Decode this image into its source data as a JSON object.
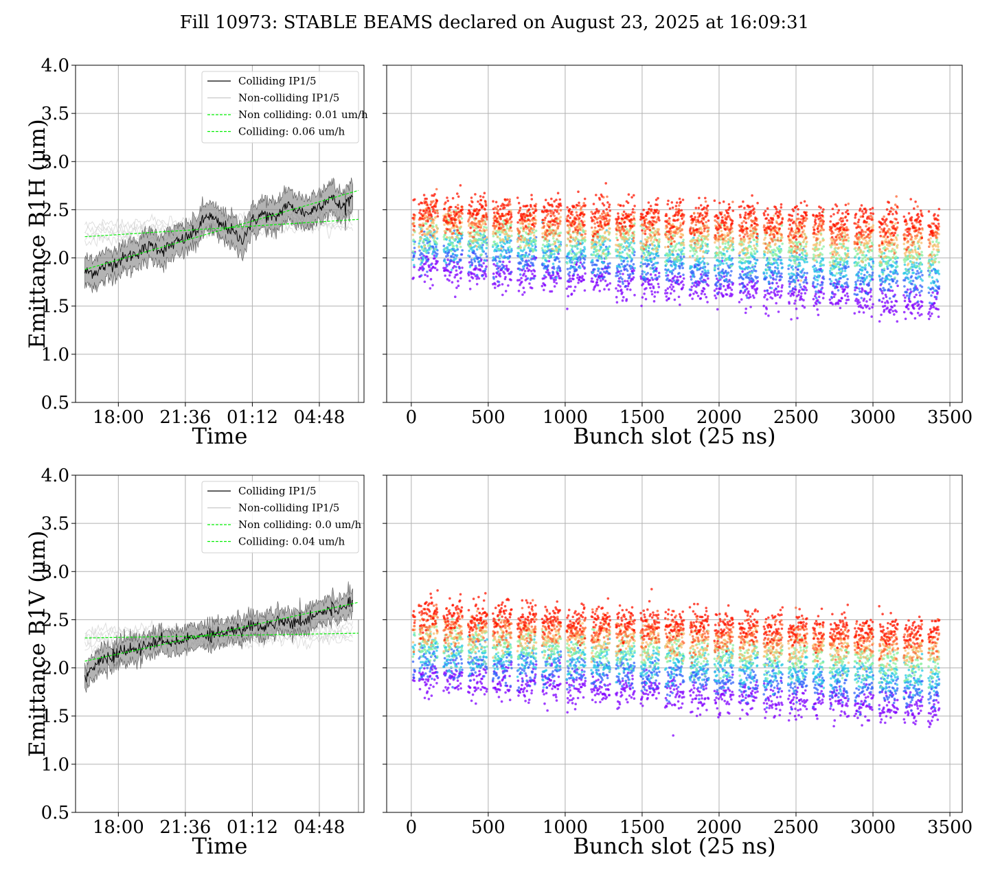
{
  "title": "Fill 10973: STABLE BEAMS declared on August 23, 2025 at 16:09:31",
  "colors": {
    "colliding": "#000000",
    "band": "#808080",
    "noncolliding": "#c8c8c8",
    "fit": "#00ee00",
    "grid": "#b0b0b0"
  },
  "chart_data": [
    {
      "type": "line",
      "panel": "top-left",
      "xlabel": "Time",
      "ylabel": "Emittance B1H (μm)",
      "x_tick_labels": [
        "18:00",
        "21:36",
        "01:12",
        "04:48"
      ],
      "x_ticks_hours": [
        18.0,
        21.6,
        25.2,
        28.8
      ],
      "xlim_hours": [
        15.7,
        31.2
      ],
      "ylim": [
        0.5,
        4.0
      ],
      "y_ticks": [
        0.5,
        1.0,
        1.5,
        2.0,
        2.5,
        3.0,
        3.5,
        4.0
      ],
      "grid": true,
      "legend_position": "upper right",
      "series": [
        {
          "name": "Colliding IP1/5",
          "style": "line",
          "x_hours": [
            16.2,
            16.8,
            17.4,
            18.0,
            18.6,
            19.2,
            19.8,
            20.4,
            21.0,
            21.6,
            22.2,
            22.8,
            23.4,
            24.0,
            24.6,
            25.2,
            25.8,
            26.4,
            27.0,
            27.6,
            28.2,
            28.8,
            29.4,
            30.0,
            30.6
          ],
          "values": [
            1.85,
            1.86,
            1.92,
            1.97,
            2.02,
            2.07,
            2.13,
            2.08,
            2.15,
            2.2,
            2.28,
            2.45,
            2.35,
            2.3,
            2.18,
            2.38,
            2.46,
            2.4,
            2.55,
            2.5,
            2.46,
            2.55,
            2.63,
            2.52,
            2.65
          ],
          "band_half_width": 0.15
        },
        {
          "name": "Non-colliding IP1/5",
          "style": "line",
          "x_hours": [
            16.2,
            17.4,
            18.6,
            19.8,
            21.0,
            22.2,
            23.4,
            24.6,
            25.8,
            27.0,
            28.2,
            29.4,
            30.6
          ],
          "values": [
            2.25,
            2.28,
            2.27,
            2.3,
            2.29,
            2.31,
            2.35,
            2.34,
            2.36,
            2.37,
            2.4,
            2.38,
            2.4
          ]
        },
        {
          "name": "Non colliding: 0.01 um/h",
          "style": "dashed",
          "x_hours": [
            16.2,
            30.9
          ],
          "values": [
            2.22,
            2.4
          ]
        },
        {
          "name": "Colliding: 0.06 um/h",
          "style": "dashed",
          "x_hours": [
            16.2,
            30.9
          ],
          "values": [
            1.88,
            2.7
          ]
        }
      ]
    },
    {
      "type": "scatter",
      "panel": "top-right",
      "xlabel": "Bunch slot (25 ns)",
      "x_ticks": [
        0,
        500,
        1000,
        1500,
        2000,
        2500,
        3000,
        3500
      ],
      "xlim": [
        -160,
        3580
      ],
      "ylim": [
        0.5,
        4.0
      ],
      "grid": true,
      "colormap": "rainbow (purple to red over time)",
      "trains": [
        {
          "start": 10,
          "end": 24
        },
        {
          "start": 50,
          "end": 170
        },
        {
          "start": 210,
          "end": 330
        },
        {
          "start": 370,
          "end": 490
        },
        {
          "start": 530,
          "end": 650
        },
        {
          "start": 690,
          "end": 810
        },
        {
          "start": 850,
          "end": 970
        },
        {
          "start": 1010,
          "end": 1130
        },
        {
          "start": 1170,
          "end": 1290
        },
        {
          "start": 1330,
          "end": 1450
        },
        {
          "start": 1490,
          "end": 1610
        },
        {
          "start": 1650,
          "end": 1770
        },
        {
          "start": 1810,
          "end": 1930
        },
        {
          "start": 1970,
          "end": 2090
        },
        {
          "start": 2130,
          "end": 2250
        },
        {
          "start": 2290,
          "end": 2410
        },
        {
          "start": 2450,
          "end": 2570
        },
        {
          "start": 2610,
          "end": 2680
        },
        {
          "start": 2720,
          "end": 2840
        },
        {
          "start": 2880,
          "end": 3000
        },
        {
          "start": 3040,
          "end": 3160
        },
        {
          "start": 3200,
          "end": 3320
        },
        {
          "start": 3360,
          "end": 3430
        }
      ],
      "level_start": [
        2.05,
        2.0,
        1.95,
        1.75
      ],
      "level_end": [
        2.4,
        2.3,
        2.2,
        1.55
      ],
      "top_start": 2.55,
      "top_end": 2.4
    },
    {
      "type": "line",
      "panel": "bottom-left",
      "xlabel": "Time",
      "ylabel": "Emittance B1V (μm)",
      "x_tick_labels": [
        "18:00",
        "21:36",
        "01:12",
        "04:48"
      ],
      "x_ticks_hours": [
        18.0,
        21.6,
        25.2,
        28.8
      ],
      "xlim_hours": [
        15.7,
        31.2
      ],
      "ylim": [
        0.5,
        4.0
      ],
      "y_ticks": [
        0.5,
        1.0,
        1.5,
        2.0,
        2.5,
        3.0,
        3.5,
        4.0
      ],
      "grid": true,
      "legend_position": "upper right",
      "series": [
        {
          "name": "Colliding IP1/5",
          "style": "line",
          "x_hours": [
            16.2,
            16.8,
            17.4,
            18.0,
            18.6,
            19.2,
            19.8,
            20.4,
            21.0,
            21.6,
            22.2,
            22.8,
            23.4,
            24.0,
            24.6,
            25.2,
            25.8,
            26.4,
            27.0,
            27.6,
            28.2,
            28.8,
            29.4,
            30.0,
            30.6
          ],
          "values": [
            1.88,
            2.05,
            2.1,
            2.15,
            2.18,
            2.2,
            2.25,
            2.28,
            2.25,
            2.3,
            2.32,
            2.36,
            2.35,
            2.4,
            2.38,
            2.45,
            2.42,
            2.48,
            2.5,
            2.46,
            2.52,
            2.58,
            2.6,
            2.62,
            2.7
          ],
          "band_half_width": 0.12
        },
        {
          "name": "Non-colliding IP1/5",
          "style": "line",
          "x_hours": [
            16.2,
            17.4,
            18.6,
            19.8,
            21.0,
            22.2,
            23.4,
            24.6,
            25.8,
            27.0,
            28.2,
            29.4,
            30.6
          ],
          "values": [
            2.3,
            2.31,
            2.32,
            2.33,
            2.32,
            2.34,
            2.35,
            2.34,
            2.35,
            2.36,
            2.35,
            2.36,
            2.36
          ]
        },
        {
          "name": "Non colliding: 0.0 um/h",
          "style": "dashed",
          "x_hours": [
            16.2,
            30.9
          ],
          "values": [
            2.31,
            2.36
          ]
        },
        {
          "name": "Colliding: 0.04 um/h",
          "style": "dashed",
          "x_hours": [
            16.2,
            30.9
          ],
          "values": [
            2.07,
            2.68
          ]
        }
      ]
    },
    {
      "type": "scatter",
      "panel": "bottom-right",
      "xlabel": "Bunch slot (25 ns)",
      "x_ticks": [
        0,
        500,
        1000,
        1500,
        2000,
        2500,
        3000,
        3500
      ],
      "xlim": [
        -160,
        3580
      ],
      "ylim": [
        0.5,
        4.0
      ],
      "grid": true,
      "colormap": "rainbow (purple to red over time)",
      "trains": [
        {
          "start": 10,
          "end": 24
        },
        {
          "start": 50,
          "end": 170
        },
        {
          "start": 210,
          "end": 330
        },
        {
          "start": 370,
          "end": 490
        },
        {
          "start": 530,
          "end": 650
        },
        {
          "start": 690,
          "end": 810
        },
        {
          "start": 850,
          "end": 970
        },
        {
          "start": 1010,
          "end": 1130
        },
        {
          "start": 1170,
          "end": 1290
        },
        {
          "start": 1330,
          "end": 1450
        },
        {
          "start": 1490,
          "end": 1610
        },
        {
          "start": 1650,
          "end": 1770
        },
        {
          "start": 1810,
          "end": 1930
        },
        {
          "start": 1970,
          "end": 2090
        },
        {
          "start": 2130,
          "end": 2250
        },
        {
          "start": 2290,
          "end": 2410
        },
        {
          "start": 2450,
          "end": 2570
        },
        {
          "start": 2610,
          "end": 2680
        },
        {
          "start": 2720,
          "end": 2840
        },
        {
          "start": 2880,
          "end": 3000
        },
        {
          "start": 3040,
          "end": 3160
        },
        {
          "start": 3200,
          "end": 3320
        },
        {
          "start": 3360,
          "end": 3430
        }
      ],
      "level_start": [
        2.1,
        2.2,
        2.25,
        1.95
      ],
      "level_end": [
        2.3,
        2.15,
        2.0,
        1.6
      ],
      "top_start": 2.6,
      "top_end": 2.4
    }
  ]
}
